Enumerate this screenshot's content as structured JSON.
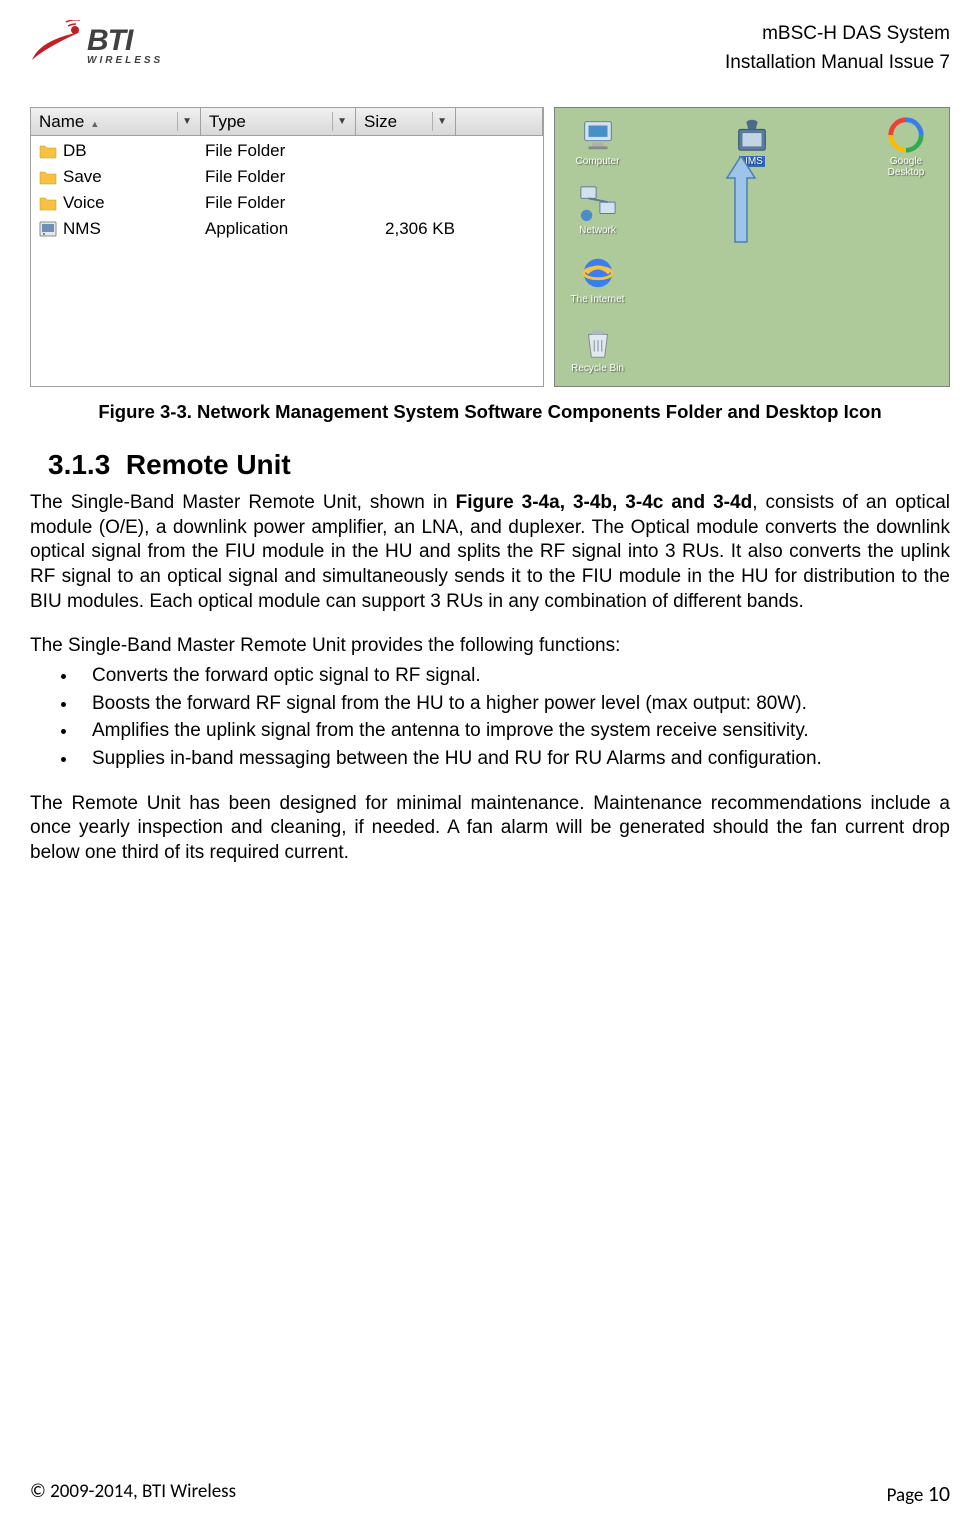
{
  "header": {
    "logo_bti": "BTI",
    "logo_wireless": "WIRELESS",
    "doc_title_1": "mBSC-H DAS System",
    "doc_title_2": "Installation Manual Issue 7"
  },
  "explorer": {
    "columns": {
      "name": "Name",
      "type": "Type",
      "size": "Size"
    },
    "rows": [
      {
        "name": "DB",
        "type": "File Folder",
        "size": "",
        "icon": "folder"
      },
      {
        "name": "Save",
        "type": "File Folder",
        "size": "",
        "icon": "folder"
      },
      {
        "name": "Voice",
        "type": "File Folder",
        "size": "",
        "icon": "folder"
      },
      {
        "name": "NMS",
        "type": "Application",
        "size": "2,306 KB",
        "icon": "app"
      }
    ]
  },
  "desktop": {
    "left_icons": [
      {
        "label": "Computer",
        "kind": "computer"
      },
      {
        "label": "Network",
        "kind": "network"
      },
      {
        "label": "The Internet",
        "kind": "ie"
      },
      {
        "label": "Recycle Bin",
        "kind": "recycle"
      }
    ],
    "center_icon": {
      "label": "NMS",
      "kind": "nms"
    },
    "right_icon": {
      "label": "Google Desktop",
      "kind": "google"
    },
    "background_color": "#aec99a",
    "arrow_fill": "#9cc5e9",
    "arrow_stroke": "#4a7fb5"
  },
  "figure_caption": "Figure 3-3. Network Management System Software Components Folder and Desktop Icon",
  "section": {
    "number": "3.1.3",
    "title": "Remote Unit",
    "para1_a": "The Single-Band Master Remote Unit, shown in ",
    "para1_bold": "Figure 3-4a, 3-4b, 3-4c and 3-4d",
    "para1_b": ", consists of an optical module (O/E), a downlink power amplifier, an LNA, and duplexer. The Optical module converts the downlink optical signal from the FIU module in the HU and splits the RF signal into 3 RUs. It also converts the uplink RF signal to an optical signal and simultaneously sends it to the FIU module in the HU for distribution to the BIU modules. Each optical module can support 3 RUs in any combination of different bands.",
    "list_intro": "The Single-Band Master Remote Unit provides the following functions:",
    "bullets": [
      "Converts the forward optic signal to RF signal.",
      "Boosts the forward RF signal from the HU to a higher power level (max output: 80W).",
      "Amplifies the uplink signal from the antenna to improve the system receive sensitivity.",
      "Supplies in-band messaging between the HU and RU for RU Alarms and configuration."
    ],
    "para2": "The Remote Unit has been designed for minimal maintenance. Maintenance recommendations include a once yearly inspection and cleaning, if needed. A fan alarm will be generated should the fan current drop below one third of its required current."
  },
  "footer": {
    "copyright": "© 2009-2014, BTI Wireless",
    "page_label": "Page",
    "page_num": "10"
  },
  "colors": {
    "logo_red": "#c41e25",
    "folder": "#f5c242",
    "app_icon": "#6b8fb5"
  }
}
